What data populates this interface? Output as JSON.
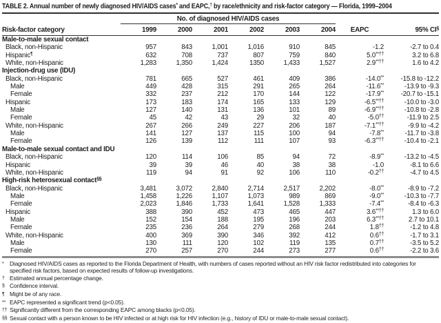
{
  "colors": {
    "background": "#ffffff",
    "text": "#1c1c1c",
    "rule_dark": "#2f2f2f",
    "rule_gray": "#8c8c8c"
  },
  "title": {
    "segments": [
      {
        "text": "TABLE 2. Annual number of newly diagnosed HIV/AIDS cases",
        "sup": false
      },
      {
        "text": "*",
        "sup": true
      },
      {
        "text": " and EAPC,",
        "sup": false
      },
      {
        "text": "†",
        "sup": true
      },
      {
        "text": " by race/ethnicity and risk-factor category — Florida, 1999–2004",
        "sup": false
      }
    ]
  },
  "table": {
    "spanner": "No. of diagnosed HIV/AIDS cases",
    "columns": {
      "label": "Risk-factor category",
      "years": [
        "1999",
        "2000",
        "2001",
        "2002",
        "2003",
        "2004"
      ],
      "eapc": "EAPC",
      "ci_label": "95% CI",
      "ci_sup": "§"
    },
    "rows": [
      {
        "section": true,
        "label": "Male-to-male sexual contact",
        "label_sup": ""
      },
      {
        "section": false,
        "label": "Black, non-Hispanic",
        "label_sup": "",
        "indent": 1,
        "values": [
          "957",
          "843",
          "1,001",
          "1,016",
          "910",
          "845"
        ],
        "eapc": {
          "v": "-1.2",
          "s": ""
        },
        "ci": "-2.7 to 0.4"
      },
      {
        "section": false,
        "label": "Hispanic",
        "label_sup": "¶",
        "indent": 1,
        "values": [
          "632",
          "708",
          "737",
          "807",
          "759",
          "840"
        ],
        "eapc": {
          "v": "5.0",
          "s": "**††"
        },
        "ci": "3.2 to 6.8"
      },
      {
        "section": false,
        "label": "White, non-Hispanic",
        "label_sup": "",
        "indent": 1,
        "values": [
          "1,283",
          "1,350",
          "1,424",
          "1350",
          "1,433",
          "1,527"
        ],
        "eapc": {
          "v": "2.9",
          "s": "**††"
        },
        "ci": "1.6 to 4.2"
      },
      {
        "section": true,
        "label": "Injection-drug use (IDU)",
        "label_sup": ""
      },
      {
        "section": false,
        "label": "Black, non-Hispanic",
        "label_sup": "",
        "indent": 1,
        "values": [
          "781",
          "665",
          "527",
          "461",
          "409",
          "386"
        ],
        "eapc": {
          "v": "-14.0",
          "s": "**"
        },
        "ci": "-15.8 to -12.2"
      },
      {
        "section": false,
        "label": "Male",
        "label_sup": "",
        "indent": 2,
        "values": [
          "449",
          "428",
          "315",
          "291",
          "265",
          "264"
        ],
        "eapc": {
          "v": "-11.6",
          "s": "**"
        },
        "ci": "-13.9 to -9.3"
      },
      {
        "section": false,
        "label": "Female",
        "label_sup": "",
        "indent": 2,
        "values": [
          "332",
          "237",
          "212",
          "170",
          "144",
          "122"
        ],
        "eapc": {
          "v": "-17.9",
          "s": "**"
        },
        "ci": "-20.7 to -15.1"
      },
      {
        "section": false,
        "label": "Hispanic",
        "label_sup": "",
        "indent": 1,
        "values": [
          "173",
          "183",
          "174",
          "165",
          "133",
          "129"
        ],
        "eapc": {
          "v": "-6.5",
          "s": "**††"
        },
        "ci": "-10.0 to -3.0"
      },
      {
        "section": false,
        "label": "Male",
        "label_sup": "",
        "indent": 2,
        "values": [
          "127",
          "140",
          "131",
          "136",
          "101",
          "89"
        ],
        "eapc": {
          "v": "-6.9",
          "s": "**††"
        },
        "ci": "-10.8 to -2.8"
      },
      {
        "section": false,
        "label": "Female",
        "label_sup": "",
        "indent": 2,
        "values": [
          "45",
          "42",
          "43",
          "29",
          "32",
          "40"
        ],
        "eapc": {
          "v": "-5.0",
          "s": "††"
        },
        "ci": "-11.9 to 2.5"
      },
      {
        "section": false,
        "label": "White, non-Hispanic",
        "label_sup": "",
        "indent": 1,
        "values": [
          "267",
          "266",
          "249",
          "227",
          "206",
          "187"
        ],
        "eapc": {
          "v": "-7.1",
          "s": "**††"
        },
        "ci": "-9.9 to -4.2"
      },
      {
        "section": false,
        "label": "Male",
        "label_sup": "",
        "indent": 2,
        "values": [
          "141",
          "127",
          "137",
          "115",
          "100",
          "94"
        ],
        "eapc": {
          "v": "-7.8",
          "s": "**"
        },
        "ci": "-11.7 to -3.8"
      },
      {
        "section": false,
        "label": "Female",
        "label_sup": "",
        "indent": 2,
        "values": [
          "126",
          "139",
          "112",
          "111",
          "107",
          "93"
        ],
        "eapc": {
          "v": "-6.3",
          "s": "**††"
        },
        "ci": "-10.4 to -2.1"
      },
      {
        "section": true,
        "label": "Male-to-male sexual contact and IDU",
        "label_sup": ""
      },
      {
        "section": false,
        "label": "Black, non-Hispanic",
        "label_sup": "",
        "indent": 1,
        "values": [
          "120",
          "114",
          "106",
          "85",
          "94",
          "72"
        ],
        "eapc": {
          "v": "-8.9",
          "s": "**"
        },
        "ci": "-13.2 to -4.5"
      },
      {
        "section": false,
        "label": "Hispanic",
        "label_sup": "",
        "indent": 1,
        "values": [
          "39",
          "39",
          "46",
          "40",
          "38",
          "38"
        ],
        "eapc": {
          "v": "-1.0",
          "s": ""
        },
        "ci": "-8.1 to 6.6"
      },
      {
        "section": false,
        "label": "White, non-Hispanic",
        "label_sup": "",
        "indent": 1,
        "values": [
          "119",
          "94",
          "91",
          "92",
          "106",
          "110"
        ],
        "eapc": {
          "v": "-0.2",
          "s": "††"
        },
        "ci": "-4.7 to 4.5"
      },
      {
        "section": true,
        "label": "High-risk heterosexual contact",
        "label_sup": "§§"
      },
      {
        "section": false,
        "label": "Black, non-Hispanic",
        "label_sup": "",
        "indent": 1,
        "values": [
          "3,481",
          "3,072",
          "2,840",
          "2,714",
          "2,517",
          "2,202"
        ],
        "eapc": {
          "v": "-8.0",
          "s": "**"
        },
        "ci": "-8.9 to -7.2"
      },
      {
        "section": false,
        "label": "Male",
        "label_sup": "",
        "indent": 2,
        "values": [
          "1,458",
          "1,226",
          "1,107",
          "1,073",
          "989",
          "869"
        ],
        "eapc": {
          "v": "-9.0",
          "s": "**"
        },
        "ci": "-10.3 to -7.7"
      },
      {
        "section": false,
        "label": "Female",
        "label_sup": "",
        "indent": 2,
        "values": [
          "2,023",
          "1,846",
          "1,733",
          "1,641",
          "1,528",
          "1,333"
        ],
        "eapc": {
          "v": "-7.4",
          "s": "**"
        },
        "ci": "-8.4 to -6.3"
      },
      {
        "section": false,
        "label": "Hispanic",
        "label_sup": "",
        "indent": 1,
        "values": [
          "388",
          "390",
          "452",
          "473",
          "465",
          "447"
        ],
        "eapc": {
          "v": "3.6",
          "s": "**††"
        },
        "ci": "1.3 to 6.0"
      },
      {
        "section": false,
        "label": "Male",
        "label_sup": "",
        "indent": 2,
        "values": [
          "152",
          "154",
          "188",
          "195",
          "196",
          "203"
        ],
        "eapc": {
          "v": "6.3",
          "s": "**††"
        },
        "ci": "2.7 to 10.1"
      },
      {
        "section": false,
        "label": "Female",
        "label_sup": "",
        "indent": 2,
        "values": [
          "235",
          "236",
          "264",
          "279",
          "268",
          "244"
        ],
        "eapc": {
          "v": "1.8",
          "s": "††"
        },
        "ci": "-1.2 to 4.8"
      },
      {
        "section": false,
        "label": "White, non-Hispanic",
        "label_sup": "",
        "indent": 1,
        "values": [
          "400",
          "369",
          "390",
          "346",
          "392",
          "412"
        ],
        "eapc": {
          "v": "0.6",
          "s": "††"
        },
        "ci": "-1.7 to 3.1"
      },
      {
        "section": false,
        "label": "Male",
        "label_sup": "",
        "indent": 2,
        "values": [
          "130",
          "111",
          "120",
          "102",
          "119",
          "135"
        ],
        "eapc": {
          "v": "0.7",
          "s": "††"
        },
        "ci": "-3.5 to 5.2"
      },
      {
        "section": false,
        "label": "Female",
        "label_sup": "",
        "indent": 2,
        "values": [
          "270",
          "257",
          "270",
          "244",
          "273",
          "277"
        ],
        "eapc": {
          "v": "0.6",
          "s": "††"
        },
        "ci": "-2.2 to 3.6"
      }
    ]
  },
  "footnotes": [
    {
      "sym": "*",
      "text": "Diagnosed HIV/AIDS cases as reported to the Florida Department of Health, with numbers of cases reported without an HIV risk factor redistributed into categories for specified risk factors, based on expected results of follow-up investigations."
    },
    {
      "sym": "†",
      "text": "Estimated annual percentage change."
    },
    {
      "sym": "§",
      "text": "Confidence interval."
    },
    {
      "sym": "¶",
      "text": "Might be of any race."
    },
    {
      "sym": "**",
      "text": "EAPC represented a significant trend (p<0.05)."
    },
    {
      "sym": "††",
      "text": "Significantly different from the corresponding EAPC among blacks (p<0.05)."
    },
    {
      "sym": "§§",
      "text": "Sexual contact with a person known to be HIV infected or at high risk for HIV infection (e.g., history of IDU or male-to-male sexual contact)."
    }
  ]
}
